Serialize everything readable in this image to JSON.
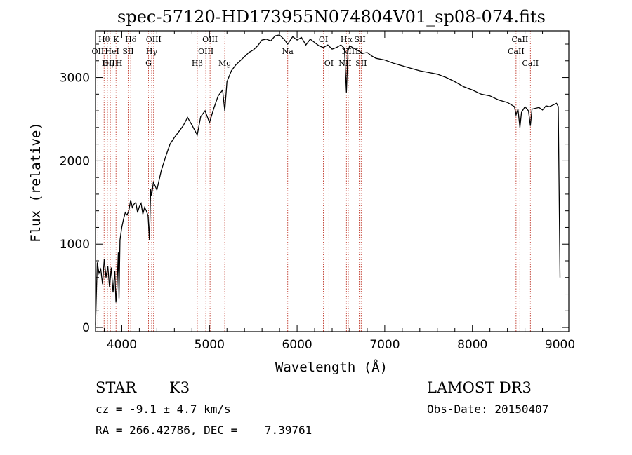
{
  "chart_data": {
    "type": "line",
    "title": "spec-57120-HD173955N074804V01_sp08-074.fits",
    "xlabel": "Wavelength (Å)",
    "ylabel": "Flux (relative)",
    "xlim": [
      3700,
      9100
    ],
    "ylim": [
      -50,
      3560
    ],
    "xticks": [
      4000,
      5000,
      6000,
      7000,
      8000,
      9000
    ],
    "yticks": [
      0,
      1000,
      2000,
      3000
    ],
    "series": [
      {
        "x": [
          3700,
          3720,
          3740,
          3760,
          3780,
          3800,
          3820,
          3840,
          3860,
          3880,
          3900,
          3920,
          3933,
          3945,
          3960,
          3968,
          3980,
          4000,
          4020,
          4040,
          4060,
          4080,
          4101,
          4120,
          4140,
          4160,
          4180,
          4200,
          4220,
          4240,
          4260,
          4280,
          4300,
          4315,
          4330,
          4340,
          4360,
          4380,
          4400,
          4450,
          4500,
          4550,
          4600,
          4650,
          4700,
          4750,
          4800,
          4861,
          4900,
          4950,
          5000,
          5050,
          5100,
          5150,
          5175,
          5200,
          5250,
          5300,
          5350,
          5400,
          5450,
          5500,
          5550,
          5600,
          5650,
          5700,
          5750,
          5800,
          5850,
          5893,
          5950,
          6000,
          6050,
          6100,
          6150,
          6200,
          6250,
          6300,
          6350,
          6400,
          6450,
          6500,
          6540,
          6563,
          6580,
          6600,
          6650,
          6700,
          6750,
          6800,
          6850,
          6900,
          7000,
          7100,
          7200,
          7300,
          7400,
          7500,
          7600,
          7700,
          7800,
          7900,
          8000,
          8100,
          8200,
          8300,
          8400,
          8480,
          8498,
          8520,
          8542,
          8560,
          8600,
          8640,
          8662,
          8680,
          8720,
          8760,
          8800,
          8840,
          8880,
          8920,
          8960,
          8980,
          9000
        ],
        "y": [
          30,
          780,
          650,
          700,
          520,
          820,
          600,
          740,
          480,
          720,
          420,
          680,
          300,
          480,
          900,
          350,
          1050,
          1200,
          1300,
          1380,
          1350,
          1400,
          1530,
          1440,
          1480,
          1500,
          1380,
          1450,
          1490,
          1360,
          1440,
          1400,
          1340,
          1050,
          1660,
          1580,
          1740,
          1700,
          1650,
          1880,
          2050,
          2200,
          2280,
          2350,
          2420,
          2520,
          2430,
          2310,
          2530,
          2600,
          2460,
          2630,
          2780,
          2850,
          2600,
          2950,
          3080,
          3150,
          3200,
          3250,
          3300,
          3330,
          3380,
          3450,
          3460,
          3440,
          3500,
          3510,
          3460,
          3400,
          3490,
          3450,
          3480,
          3390,
          3460,
          3420,
          3380,
          3360,
          3390,
          3340,
          3360,
          3390,
          3350,
          2820,
          3320,
          3380,
          3350,
          3320,
          3290,
          3300,
          3260,
          3230,
          3210,
          3170,
          3140,
          3110,
          3080,
          3060,
          3040,
          3000,
          2950,
          2890,
          2850,
          2800,
          2780,
          2730,
          2700,
          2650,
          2550,
          2620,
          2400,
          2580,
          2650,
          2600,
          2420,
          2620,
          2630,
          2640,
          2610,
          2660,
          2650,
          2670,
          2690,
          2650,
          600
        ]
      }
    ],
    "lines": [
      {
        "name": "Hθ",
        "x": 3798,
        "row": 0
      },
      {
        "name": "OII",
        "x": 3727,
        "row": 1
      },
      {
        "name": "OIII",
        "x": 3869,
        "row": 2
      },
      {
        "name": "Hη",
        "x": 3836,
        "row": 2
      },
      {
        "name": "HeI",
        "x": 3889,
        "row": 1
      },
      {
        "name": "K",
        "x": 3934,
        "row": 0
      },
      {
        "name": "H",
        "x": 3969,
        "row": 2
      },
      {
        "name": "Hδ",
        "x": 4102,
        "row": 0
      },
      {
        "name": "SII",
        "x": 4072,
        "row": 1
      },
      {
        "name": "OIII",
        "x": 4363,
        "row": 0
      },
      {
        "name": "Hγ",
        "x": 4341,
        "row": 1
      },
      {
        "name": "G",
        "x": 4305,
        "row": 2
      },
      {
        "name": "Hβ",
        "x": 4861,
        "row": 2
      },
      {
        "name": "OIII",
        "x": 4959,
        "row": 1
      },
      {
        "name": "OIII",
        "x": 5007,
        "row": 0
      },
      {
        "name": "Mg",
        "x": 5175,
        "row": 2
      },
      {
        "name": "Na",
        "x": 5893,
        "row": 1
      },
      {
        "name": "OI",
        "x": 6300,
        "row": 0
      },
      {
        "name": "OI",
        "x": 6363,
        "row": 2
      },
      {
        "name": "Hα",
        "x": 6563,
        "row": 0
      },
      {
        "name": "NII",
        "x": 6548,
        "row": 2
      },
      {
        "name": "NII",
        "x": 6584,
        "row": 1
      },
      {
        "name": "SII",
        "x": 6717,
        "row": 0
      },
      {
        "name": "SII",
        "x": 6731,
        "row": 2
      },
      {
        "name": "Li",
        "x": 6708,
        "row": 1
      },
      {
        "name": "CaII",
        "x": 8498,
        "row": 1
      },
      {
        "name": "CaII",
        "x": 8542,
        "row": 0
      },
      {
        "name": "CaII",
        "x": 8662,
        "row": 2
      }
    ],
    "grid": false,
    "line_color": "#000000",
    "marker_color": "#c0392b"
  },
  "info": {
    "object_class": "STAR",
    "subclass": "K3",
    "survey": "LAMOST DR3",
    "cz": "cz = -9.1 ± 4.7 km/s",
    "obs_date": "Obs-Date: 20150407",
    "coords": "RA = 266.42786, DEC =    7.39761"
  }
}
